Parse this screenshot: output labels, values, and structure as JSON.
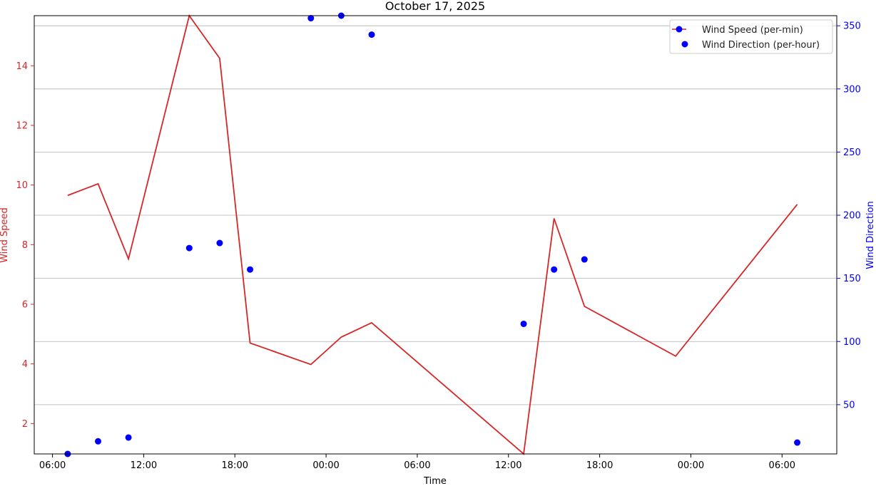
{
  "chart_data": {
    "type": "line",
    "title": "October 17, 2025",
    "xlabel": "Time",
    "x_ticks": [
      {
        "hour": 6,
        "label": "06:00"
      },
      {
        "hour": 12,
        "label": "12:00"
      },
      {
        "hour": 18,
        "label": "18:00"
      },
      {
        "hour": 24,
        "label": "00:00"
      },
      {
        "hour": 30,
        "label": "06:00"
      },
      {
        "hour": 36,
        "label": "12:00"
      },
      {
        "hour": 42,
        "label": "18:00"
      },
      {
        "hour": 48,
        "label": "00:00"
      },
      {
        "hour": 54,
        "label": "06:00"
      }
    ],
    "xlim_hours": [
      4.8,
      57.6
    ],
    "left_axis": {
      "label": "Wind Speed",
      "color": "#d62728",
      "ylim": [
        0.98,
        15.68
      ],
      "ticks": [
        2,
        4,
        6,
        8,
        10,
        12,
        14
      ]
    },
    "right_axis": {
      "label": "Wind Direction",
      "color": "#0000ff",
      "ylim": [
        11,
        358
      ],
      "ticks": [
        50,
        100,
        150,
        200,
        250,
        300,
        350
      ]
    },
    "grid": "horizontal (right axis)",
    "legend_position": "upper right",
    "series": [
      {
        "name": "Wind Speed (per-min)",
        "type": "line",
        "axis": "left",
        "color": "#d62728",
        "points": [
          {
            "hour": 7,
            "value": 9.65
          },
          {
            "hour": 9,
            "value": 10.04
          },
          {
            "hour": 11,
            "value": 7.52
          },
          {
            "hour": 15,
            "value": 15.68
          },
          {
            "hour": 17,
            "value": 14.25
          },
          {
            "hour": 19,
            "value": 4.7
          },
          {
            "hour": 23,
            "value": 3.98
          },
          {
            "hour": 25,
            "value": 4.9
          },
          {
            "hour": 27,
            "value": 5.38
          },
          {
            "hour": 37,
            "value": 0.98
          },
          {
            "hour": 39,
            "value": 8.88
          },
          {
            "hour": 41,
            "value": 5.93
          },
          {
            "hour": 47,
            "value": 4.26
          },
          {
            "hour": 55,
            "value": 9.35
          }
        ]
      },
      {
        "name": "Wind Direction (per-hour)",
        "type": "scatter",
        "axis": "right",
        "color": "#0000ff",
        "points": [
          {
            "hour": 7,
            "value": 11
          },
          {
            "hour": 9,
            "value": 21
          },
          {
            "hour": 11,
            "value": 24
          },
          {
            "hour": 15,
            "value": 174
          },
          {
            "hour": 17,
            "value": 178
          },
          {
            "hour": 19,
            "value": 157
          },
          {
            "hour": 23,
            "value": 356
          },
          {
            "hour": 25,
            "value": 358
          },
          {
            "hour": 27,
            "value": 343
          },
          {
            "hour": 37,
            "value": 114
          },
          {
            "hour": 39,
            "value": 157
          },
          {
            "hour": 41,
            "value": 165
          },
          {
            "hour": 55,
            "value": 20
          }
        ]
      }
    ]
  }
}
